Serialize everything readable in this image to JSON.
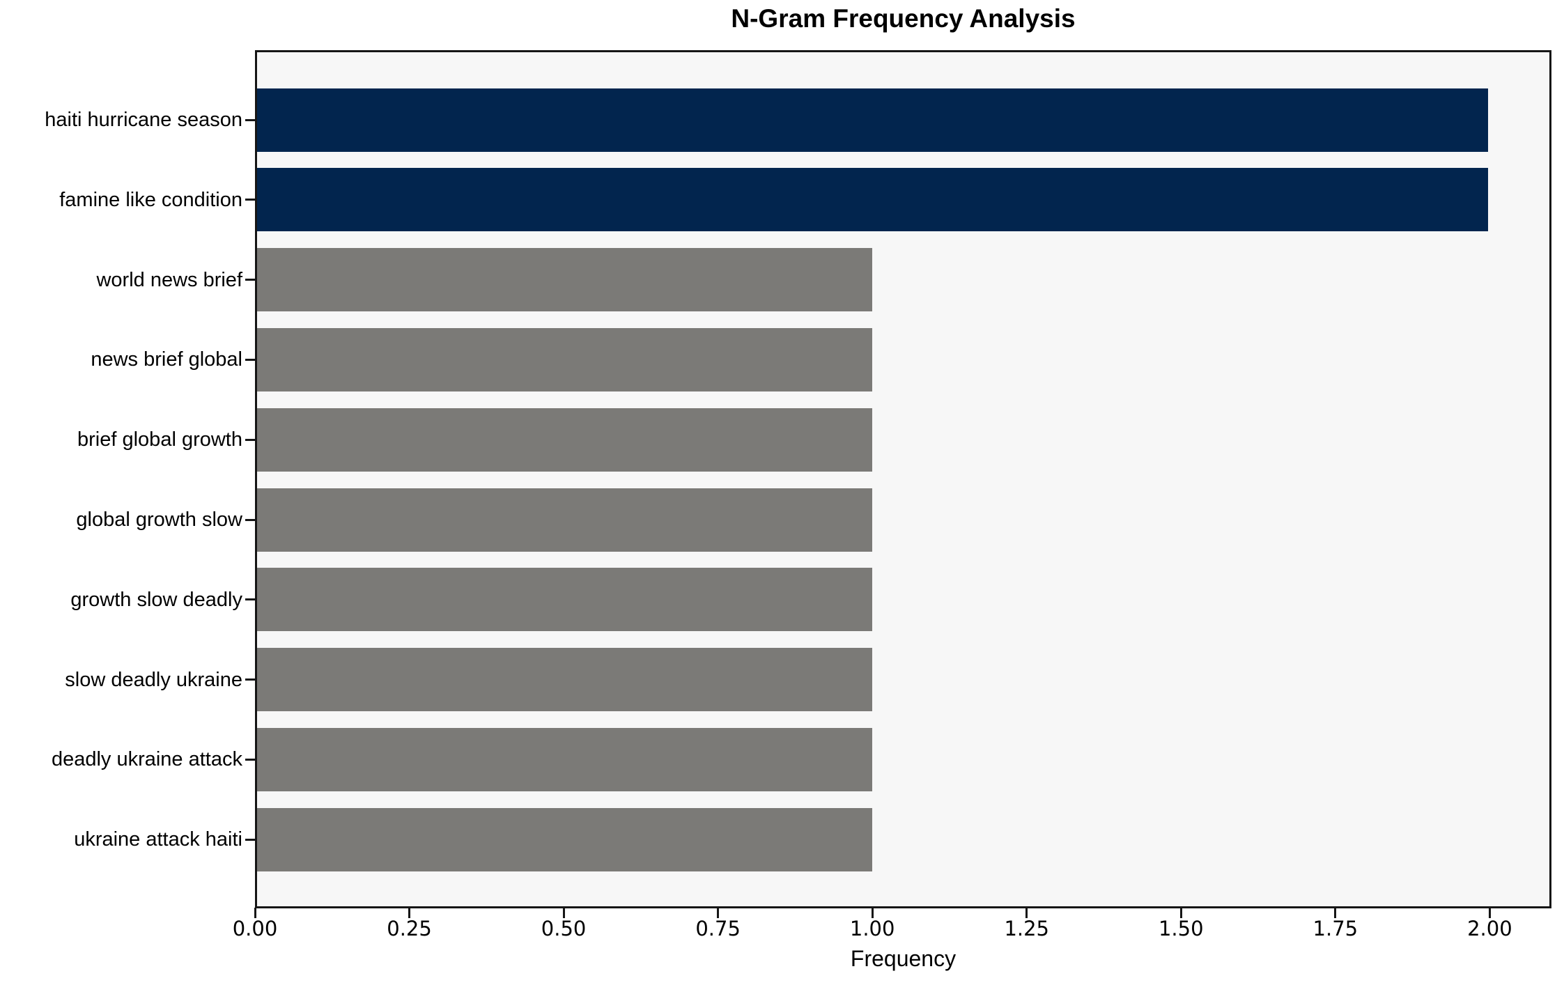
{
  "chart_data": {
    "type": "bar",
    "orientation": "horizontal",
    "title": "N-Gram Frequency Analysis",
    "xlabel": "Frequency",
    "ylabel": "",
    "categories": [
      "haiti hurricane season",
      "famine like condition",
      "world news brief",
      "news brief global",
      "brief global growth",
      "global growth slow",
      "growth slow deadly",
      "slow deadly ukraine",
      "deadly ukraine attack",
      "ukraine attack haiti"
    ],
    "values": [
      2,
      2,
      1,
      1,
      1,
      1,
      1,
      1,
      1,
      1
    ],
    "bar_color_roles": [
      "highlight",
      "highlight",
      "default",
      "default",
      "default",
      "default",
      "default",
      "default",
      "default",
      "default"
    ],
    "colors": {
      "highlight": "#02254e",
      "default": "#7b7a77",
      "plot_background": "#f7f7f7",
      "figure_background": "#ffffff",
      "spine": "#161616",
      "text": "#000000"
    },
    "xlim": [
      0,
      2.1
    ],
    "x_ticks": [
      {
        "value": 0.0,
        "label": "0.00"
      },
      {
        "value": 0.25,
        "label": "0.25"
      },
      {
        "value": 0.5,
        "label": "0.50"
      },
      {
        "value": 0.75,
        "label": "0.75"
      },
      {
        "value": 1.0,
        "label": "1.00"
      },
      {
        "value": 1.25,
        "label": "1.25"
      },
      {
        "value": 1.5,
        "label": "1.50"
      },
      {
        "value": 1.75,
        "label": "1.75"
      },
      {
        "value": 2.0,
        "label": "2.00"
      }
    ],
    "grid": false,
    "legend": null
  }
}
